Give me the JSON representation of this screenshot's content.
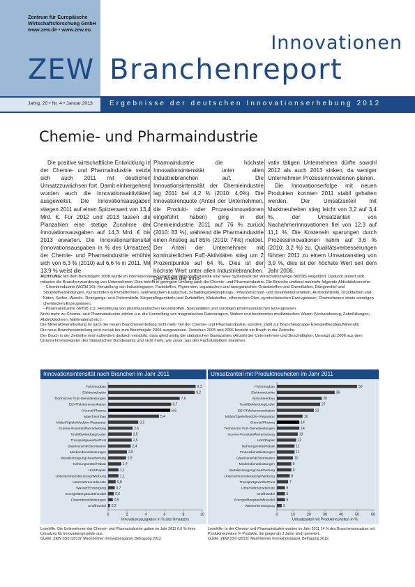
{
  "header": {
    "org_line1": "Zentrum für Europäische",
    "org_line2": "Wirtschaftsforschung GmbH",
    "org_line3": "www.zew.de • www.zew.eu",
    "logo": "ZEW",
    "title_small": "Innovationen",
    "title_big": "Branchenreport",
    "issue": "Jahrg. 20 • Nr. 4 • Januar 2013",
    "subtitle": "Ergebnisse der deutschen Innovationserhebung 2012"
  },
  "article": {
    "title": "Chemie- und Pharmaindustrie",
    "col1": "Die positive wirtschaftliche Entwicklung in der Chemie- und Pharmaindustrie setzte sich auch 2011 mit deutlichen Umsatzzuwächsen fort. Damit einhergehend wurden auch die Innovationsaktivitäten ausgeweitet. Die Innovationsausgaben stiegen 2011 auf einen Spitzenwert von 13,4 Mrd. €. Für 2012 und 2013 lassen die Planzahlen eine stetige Zunahme der Innovationsausgaben auf 14,3 Mrd. € bis 2013 erwarten. Die Innovationsintensität (Innovationsausgaben in % des Umsatzes) der Chemie- und Pharmaindustrie erhöhte sich von 6,3 % (2010) auf 6,6 % in 2011. Mit 13,9 % weist die",
    "col2": "Pharmaindustrie die höchste Innovationsintensität unter allen Industriebranchen auf. Die Innovationsintensität der Chemieindustrie lag 2011 bei 4,2 % (2010: 4,0%). Die Innovatorenquote (Anteil der Unternehmen, die Produkt- oder Prozessinnovationen eingeführt haben) ging in der Chemieindustrie 2011 auf 76 % zurück (2010: 83 %), während die Pharmaindustrie einen Anstieg auf 85% (2010: 74%) meldet. Der Anteil der Unternehmen mit kontinuierlichen FuE-Aktivitäten stieg um 2 Prozentpunkte auf 64 %. Dies ist der höchste Wert unter allen Industriebranchen. Der Anteil der inno-",
    "col3a": "vativ tätigen Unternehmen dürfte sowohl 2012 als auch 2013 sinken, da weniger Unternehmen Prozessinnovationen planen.",
    "col3b": "Die Innovationserfolge mit neuen Produkten konnten 2011 stabil gehalten werden. Der Umsatzanteil mit Marktneuheiten stieg leicht von 3,2 auf 3,4 %, der Umsatzanteil von Nachahmerinnovationen fiel von 12,3 auf 11,1 %. Die Kostenein sparungen durch Prozessinnovationen nahm auf 3,6 % (2010: 3,2 %) zu. Qualitätsverbesserungen führten 2011 zu einem Umsatzanstieg von 3,9 %, dies ist der höchste Wert seit dem Jahr 2006."
  },
  "note": {
    "lead_bold": "ACHTUNG:",
    "lead": " Mit dem Berichtsjahr 2008 wurde im Internationalen System der Wirtschaftsstatistik eine neue Systematik der Wirtschaftszweige (WZ08) eingeführt. Dadurch ändert sich mitunter die Branchenzuordnung von Unternehmen. Dies betrifft in geringem Umfang auch die Chemie- und Pharmaindustrie. Die Branche umfasst nunmehr folgende Aktivitätsbereiche:",
    "item1": "- Chemieindustrie (WZ08 20): Herstellung von Industriegasen, Farbstoffen, Pigmenten, organischen und anorganischen Grundstoffen und Chemikalien, Düngemittel und Stickstoffverbindungen, Kunststoffen in Primärformen, synthetischem Kautschuk, Schädlingsbekämpfungs-, Pflanzenschutz- und Desinfektionsmitteln, Anstrichmitteln, Druckfarben und Kitten, Seifen, Wasch-, Reinigungs- und Poliermitteln, Körperpflegemitteln und Duftstoffen, Klebstoffen, etherischen Ölen, pyrotechnischen Erzeugnissen, Chemiefasern sowie sonstigen chemischen Erzeugnissen.",
    "item2": "- Pharmaindustrie (WZ08 21): Herstellung von pharmazeutischen Grundstoffen, Spezialitäten und sonstigen pharmazeutischen Erzeugnissen.",
    "para2": "Nicht mehr zu Chemie- und Pharmaindustrie zählen u.a. die Herstellung von magnetischen Datenträgern, Wafern und bestimmten medizinischen Waren (Verbandszeug, Zahnfüllungen, Abdecktüchern, Nahtmaterial etc.).",
    "para3": "Die Mineralölverarbeitung ist nach der neuen Brancheneinteilung nicht mehr Teil der Chemie- und Pharmaindustrie, sondern zählt zur Branchengruppe Energie/Bergbau/Mineralöl.",
    "para4": "Die neue Brancheneinteilung wird zurück bis zum Berichtsjahr 2006 ausgewiesen. Zwischen 2005 und 2006 besteht ein Bruch in der Zeitreihe.",
    "para5": "Der Bruch in der Zeitreihe wird außerdem dadurch verstärkt, dass gleichzeitig die statistischen Basiszahlen (Anzahl der Unternehmen und Beschäftigten, Umsatz) ab 2006 aus dem Unternehmensregister des Statistischen Bundesamts und nicht mehr, wie zuvor, aus den Fachstatistiken stammen."
  },
  "colors": {
    "brand": "#1b4a85",
    "bar": "#3a3a3a",
    "highlight": "#000000",
    "panel": "#dde6ef"
  },
  "chart_data": [
    {
      "type": "bar",
      "orientation": "horizontal",
      "title": "Innovationsintensität nach Branchen im Jahr 2011",
      "xlabel": "Innovationsausgaben in % des Umsatzes",
      "xlim": [
        0,
        10
      ],
      "xticks": [
        "0",
        "2",
        "4",
        "6",
        "8",
        "10"
      ],
      "highlight": "Chemie/Pharma",
      "categories": [
        "Fahrzeugbau",
        "Elektroindustrie",
        "Technischer FuE-Dienstleistungen",
        "EDV/Telekommunikation",
        "Chemie/Pharma",
        "Maschinenbau",
        "Möbel/Spiele/Medizin-/Reparatur",
        "Gummi-/Kunststoffverarbeitung",
        "Textil/Bekleidung/Leder",
        "Transportgewerbe/Post",
        "Glas/Keramik/Steinwaren",
        "Mediendienstleistungen",
        "Metallerzeugung/-bearbeitung",
        "Nahrungsmittel/Tabak",
        "Holz/Papier",
        "Unternehmensberatung/Werbung",
        "Unternehmensdienste",
        "Wasser/Entsorgung",
        "Energie/Bergbau/Mineralöl",
        "Finanzdienstleistungen",
        "Großhandel"
      ],
      "values": [
        9.3,
        9.2,
        7.6,
        6.7,
        6.6,
        5.4,
        3.2,
        2.6,
        2.5,
        2.5,
        2.4,
        2.0,
        1.9,
        1.4,
        1.1,
        1.1,
        0.8,
        0.7,
        0.6,
        0.5,
        0.2
      ],
      "labels": [
        "9,3",
        "9,2",
        "7,6",
        "6,7",
        "6,6",
        "5,4",
        "3,2",
        "2,6",
        "2,5",
        "2,5",
        "2,4",
        "2,0",
        "1,9",
        "1,4",
        "1,1",
        "1,1",
        "0,8",
        "0,7",
        "0,6",
        "0,5",
        "0,2"
      ],
      "caption": "Lesehilfe: Die Unternehmen der Chemie- und Pharmaindustrie gaben im Jahr 2011 6,6 % ihres Umsatzes für Innovationsprojekte aus.",
      "source": "Quelle: ZEW (ISI) (2013): Mannheimer Innovationspanel, Befragung 2012."
    },
    {
      "type": "bar",
      "orientation": "horizontal",
      "title": "Umsatzanteil mit Produktneuheiten im Jahr 2011",
      "xlabel": "Umsatzanteil mit Produktneuheiten in %",
      "xlim": [
        0,
        60
      ],
      "xticks": [
        "0",
        "10",
        "20",
        "30",
        "40",
        "50",
        "60"
      ],
      "highlight": "Chemie/Pharma",
      "categories": [
        "Fahrzeugbau",
        "Elektroindustrie",
        "Maschinenbau",
        "Textil/Bekleidung/Leder",
        "EDV/Telekommunikation",
        "Möbel/Spiele/Medizin-/Reparatur",
        "Chemie/Pharma",
        "Technische FuE-Dienstleistungen",
        "Gummi-/Kunststoffverarbeitung",
        "Holz/Papier",
        "Nahrungsmittel/Tabak",
        "Finanzdienstleistungen",
        "Glas/Keramik/Steinwaren",
        "Mediendienstleistungen",
        "Metallerzeugung/-bearbeitung",
        "Unternehmensberatung/Werbung",
        "Transportgewerbe/Post",
        "Unternehmensdienste",
        "Großhandel",
        "Energie/Bergbau/Mineralöl",
        "Wasser/Entsorgung"
      ],
      "values": [
        50,
        36,
        28,
        27,
        23,
        16,
        14,
        14,
        13,
        12,
        11,
        11,
        10,
        9,
        9,
        8,
        7,
        5,
        5,
        5,
        3
      ],
      "labels": [
        "50",
        "36",
        "28",
        "27",
        "23",
        "16",
        "14",
        "14",
        "13",
        "12",
        "11",
        "11",
        "10",
        "9",
        "9",
        "8",
        "7",
        "5",
        "5",
        "5",
        "3"
      ],
      "caption": "Lesehilfe: In der Chemie- und Pharmaindustrie wurden im Jahr 2011 14 % des Branchenumsatzes mit Produktneuheiten (= Produkte, die jünger als 3 Jahre sind) generiert.",
      "source": "Quelle: ZEW (ISI) (2013): Mannheimer Innovationspanel, Befragung 2012."
    }
  ]
}
